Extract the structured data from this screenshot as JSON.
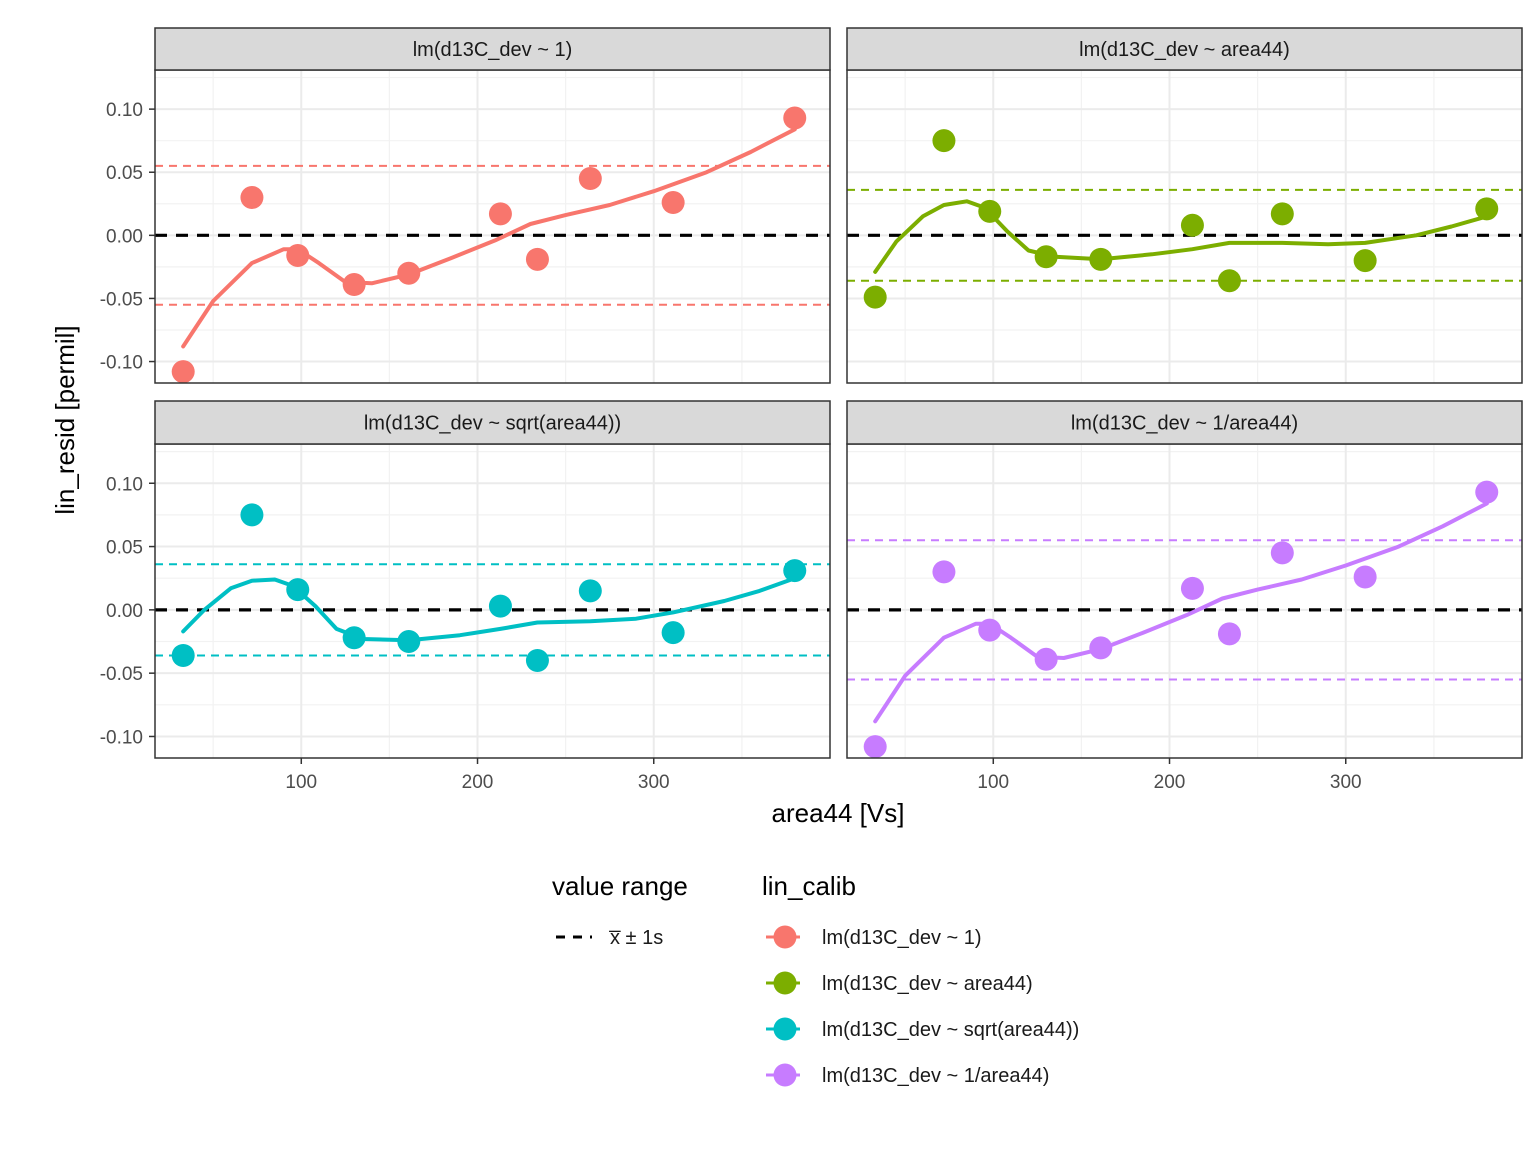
{
  "chart_data": {
    "type": "scatter",
    "xlabel": "area44 [Vs]",
    "ylabel": "lin_resid [permil]",
    "xlim": [
      17,
      400
    ],
    "ylim": [
      -0.117,
      0.1
    ],
    "x_ticks": [
      100,
      200,
      300
    ],
    "x_tick_labels": [
      "100",
      "200",
      "300"
    ],
    "y_ticks": [
      -0.1,
      -0.05,
      0,
      0.05,
      0.1
    ],
    "y_tick_labels": [
      "-0.10",
      "-0.05",
      "0.00",
      "0.05",
      "0.10"
    ],
    "grid": true,
    "legend_position": "bottom",
    "legend": {
      "range_title": "value range",
      "range_label": "x̅ ± 1s",
      "calib_title": "lin_calib"
    },
    "series": [
      {
        "name": "lm(d13C_dev ~ 1)",
        "color": "#F8766D",
        "x": [
          33,
          72,
          98,
          130,
          161,
          213,
          234,
          264,
          311,
          380
        ],
        "y": [
          -0.108,
          0.03,
          -0.016,
          -0.039,
          -0.03,
          0.017,
          -0.019,
          0.045,
          0.026,
          0.093
        ],
        "range": [
          -0.055,
          0.055
        ],
        "smooth": [
          [
            33,
            -0.088
          ],
          [
            50,
            -0.052
          ],
          [
            72,
            -0.022
          ],
          [
            90,
            -0.011
          ],
          [
            98,
            -0.011
          ],
          [
            110,
            -0.022
          ],
          [
            125,
            -0.037
          ],
          [
            140,
            -0.038
          ],
          [
            161,
            -0.031
          ],
          [
            185,
            -0.018
          ],
          [
            210,
            -0.004
          ],
          [
            230,
            0.009
          ],
          [
            250,
            0.016
          ],
          [
            275,
            0.024
          ],
          [
            300,
            0.035
          ],
          [
            330,
            0.05
          ],
          [
            355,
            0.066
          ],
          [
            380,
            0.084
          ]
        ]
      },
      {
        "name": "lm(d13C_dev ~ area44)",
        "color": "#7CAE00",
        "x": [
          33,
          72,
          98,
          130,
          161,
          213,
          234,
          264,
          311,
          380
        ],
        "y": [
          -0.049,
          0.075,
          0.019,
          -0.017,
          -0.019,
          0.008,
          -0.036,
          0.017,
          -0.02,
          0.021
        ],
        "range": [
          -0.036,
          0.036
        ],
        "smooth": [
          [
            33,
            -0.029
          ],
          [
            45,
            -0.005
          ],
          [
            60,
            0.015
          ],
          [
            72,
            0.024
          ],
          [
            85,
            0.027
          ],
          [
            95,
            0.022
          ],
          [
            108,
            0.003
          ],
          [
            120,
            -0.012
          ],
          [
            135,
            -0.017
          ],
          [
            161,
            -0.019
          ],
          [
            190,
            -0.015
          ],
          [
            213,
            -0.011
          ],
          [
            234,
            -0.006
          ],
          [
            264,
            -0.006
          ],
          [
            290,
            -0.007
          ],
          [
            311,
            -0.006
          ],
          [
            340,
            0.0
          ],
          [
            360,
            0.007
          ],
          [
            380,
            0.015
          ]
        ]
      },
      {
        "name": "lm(d13C_dev ~ sqrt(area44))",
        "color": "#00BFC4",
        "x": [
          33,
          72,
          98,
          130,
          161,
          213,
          234,
          264,
          311,
          380
        ],
        "y": [
          -0.036,
          0.075,
          0.016,
          -0.022,
          -0.025,
          0.003,
          -0.04,
          0.015,
          -0.018,
          0.031
        ],
        "range": [
          -0.036,
          0.036
        ],
        "smooth": [
          [
            33,
            -0.017
          ],
          [
            45,
            0.0
          ],
          [
            60,
            0.017
          ],
          [
            72,
            0.023
          ],
          [
            85,
            0.024
          ],
          [
            95,
            0.019
          ],
          [
            108,
            0.003
          ],
          [
            120,
            -0.015
          ],
          [
            135,
            -0.023
          ],
          [
            161,
            -0.024
          ],
          [
            190,
            -0.02
          ],
          [
            213,
            -0.015
          ],
          [
            234,
            -0.01
          ],
          [
            264,
            -0.009
          ],
          [
            290,
            -0.007
          ],
          [
            311,
            -0.002
          ],
          [
            340,
            0.007
          ],
          [
            360,
            0.015
          ],
          [
            380,
            0.025
          ]
        ]
      },
      {
        "name": "lm(d13C_dev ~ 1/area44)",
        "color": "#C77CFF",
        "x": [
          33,
          72,
          98,
          130,
          161,
          213,
          234,
          264,
          311,
          380
        ],
        "y": [
          -0.108,
          0.03,
          -0.016,
          -0.039,
          -0.03,
          0.017,
          -0.019,
          0.045,
          0.026,
          0.093
        ],
        "range": [
          -0.055,
          0.055
        ],
        "smooth": [
          [
            33,
            -0.088
          ],
          [
            50,
            -0.052
          ],
          [
            72,
            -0.022
          ],
          [
            90,
            -0.011
          ],
          [
            98,
            -0.011
          ],
          [
            110,
            -0.022
          ],
          [
            125,
            -0.037
          ],
          [
            140,
            -0.038
          ],
          [
            161,
            -0.031
          ],
          [
            185,
            -0.018
          ],
          [
            210,
            -0.004
          ],
          [
            230,
            0.009
          ],
          [
            250,
            0.016
          ],
          [
            275,
            0.024
          ],
          [
            300,
            0.035
          ],
          [
            330,
            0.05
          ],
          [
            355,
            0.066
          ],
          [
            380,
            0.084
          ]
        ]
      }
    ]
  }
}
